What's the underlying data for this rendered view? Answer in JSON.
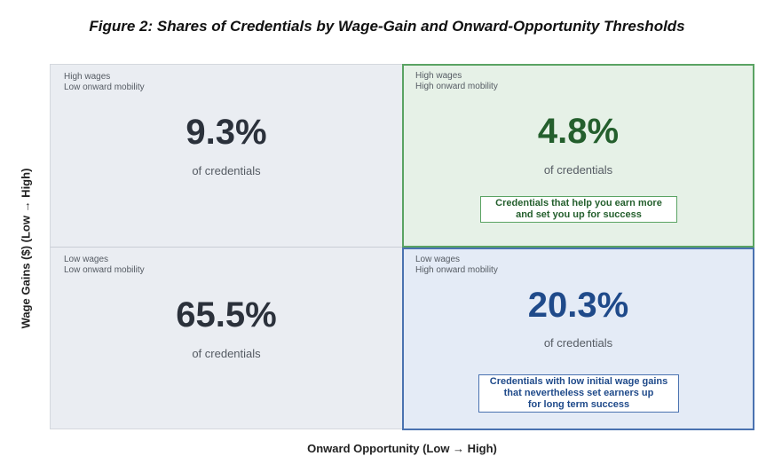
{
  "chart_data": {
    "type": "table",
    "title": "Figure 2: Shares of Credentials by Wage-Gain and Onward-Opportunity Thresholds",
    "xlabel": "Onward Opportunity (Low → High)",
    "ylabel": "Wage Gains ($) (Low → High)",
    "unit": "of credentials",
    "quadrants": [
      {
        "key": "tl",
        "line1": "High wages",
        "line2": "Low onward mobility",
        "value": 9.3,
        "display": "9.3%",
        "color": "#2b313b"
      },
      {
        "key": "tr",
        "line1": "High wages",
        "line2": "High onward mobility",
        "value": 4.8,
        "display": "4.8%",
        "color": "#245f2d",
        "note_lines": [
          "Credentials that help you earn more",
          "and set you up for success"
        ]
      },
      {
        "key": "bl",
        "line1": "Low wages",
        "line2": "Low onward mobility",
        "value": 65.5,
        "display": "65.5%",
        "color": "#2b313b"
      },
      {
        "key": "br",
        "line1": "Low wages",
        "line2": "High onward mobility",
        "value": 20.3,
        "display": "20.3%",
        "color": "#1f4a8a",
        "note_lines": [
          "Credentials with low initial wage gains",
          "that nevertheless set earners up",
          "for long term success"
        ]
      }
    ]
  },
  "colors": {
    "green_border": "#5aa363",
    "blue_border": "#4a72b0"
  }
}
